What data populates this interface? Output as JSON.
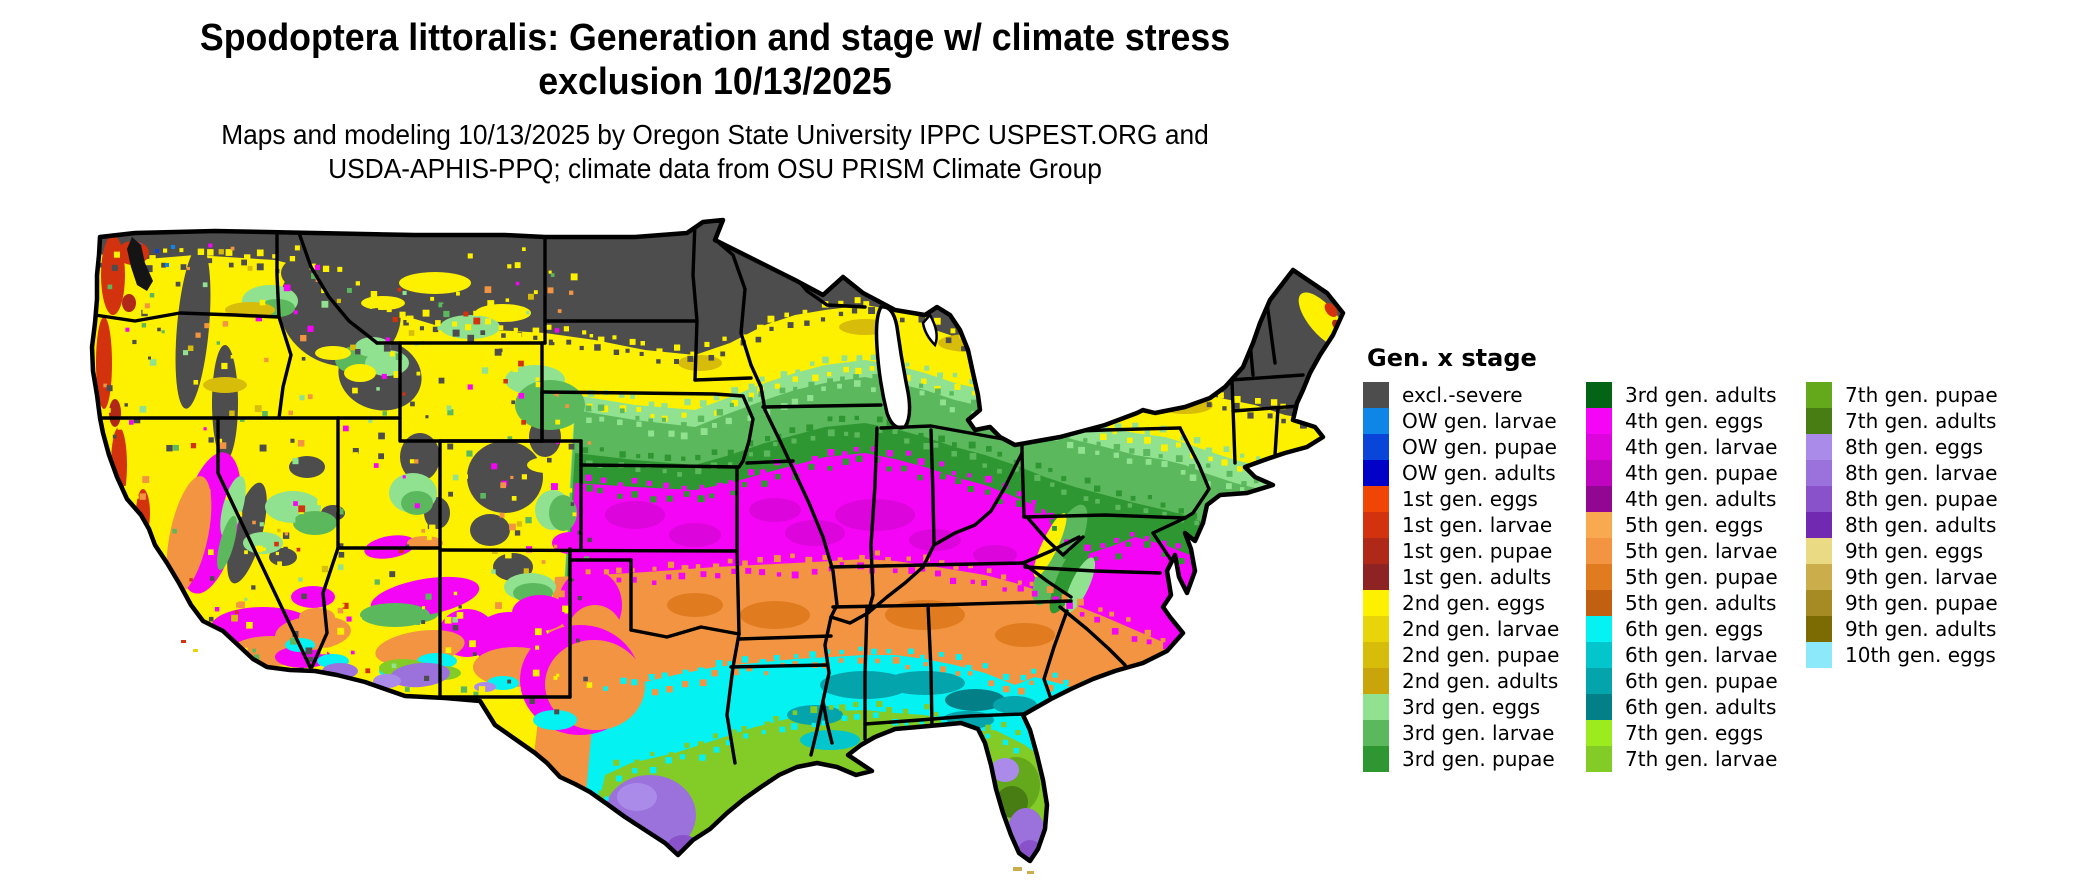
{
  "page": {
    "background_color": "#FFFFFF"
  },
  "header": {
    "title_line1": "Spodoptera littoralis: Generation and stage w/ climate stress",
    "title_line2": "exclusion 10/13/2025",
    "subtitle_line1": "Maps and modeling 10/13/2025 by Oregon State University IPPC USPEST.ORG and",
    "subtitle_line2": "USDA-APHIS-PPQ; climate data from OSU PRISM Climate Group"
  },
  "map": {
    "region": "Continental United States",
    "date_shown": "10/13/2025",
    "border_color": "#000000",
    "excluded_color": "#4D4D4D",
    "north_to_south_band_sequence": [
      "excl.-severe",
      "2nd gen. (eggs/larvae/pupae/adults)",
      "3rd gen. (eggs/larvae/pupae/adults)",
      "4th gen. (eggs/larvae/pupae/adults)",
      "5th gen. (eggs/larvae/pupae/adults)",
      "6th gen. (eggs/larvae/pupae/adults)",
      "7th gen. (eggs/larvae/pupae/adults)",
      "8th gen. (eggs/larvae/pupae)"
    ]
  },
  "legend": {
    "title": "Gen. x stage",
    "columns": [
      [
        {
          "label": "excl.-severe",
          "color": "#4D4D4D"
        },
        {
          "label": "OW gen. larvae",
          "color": "#0D86E8"
        },
        {
          "label": "OW gen. pupae",
          "color": "#0A45D9"
        },
        {
          "label": "OW gen. adults",
          "color": "#0101C8"
        },
        {
          "label": "1st gen. eggs",
          "color": "#F04505"
        },
        {
          "label": "1st gen. larvae",
          "color": "#D2320E"
        },
        {
          "label": "1st gen. pupae",
          "color": "#B02818"
        },
        {
          "label": "1st gen. adults",
          "color": "#8E2323"
        },
        {
          "label": "2nd gen. eggs",
          "color": "#FDF100"
        },
        {
          "label": "2nd gen. larvae",
          "color": "#E8D409"
        },
        {
          "label": "2nd gen. pupae",
          "color": "#D8BC0A"
        },
        {
          "label": "2nd gen. adults",
          "color": "#C9A40B"
        },
        {
          "label": "3rd gen. eggs",
          "color": "#90E290"
        },
        {
          "label": "3rd gen. larvae",
          "color": "#5CB85C"
        },
        {
          "label": "3rd gen. pupae",
          "color": "#2F9732"
        }
      ],
      [
        {
          "label": "3rd gen. adults",
          "color": "#026414"
        },
        {
          "label": "4th gen. eggs",
          "color": "#F505F5"
        },
        {
          "label": "4th gen. larvae",
          "color": "#DC06DC"
        },
        {
          "label": "4th gen. pupae",
          "color": "#C005C0"
        },
        {
          "label": "4th gen. adults",
          "color": "#910791"
        },
        {
          "label": "5th gen. eggs",
          "color": "#F9A94F"
        },
        {
          "label": "5th gen. larvae",
          "color": "#F29441"
        },
        {
          "label": "5th gen. pupae",
          "color": "#E07C1F"
        },
        {
          "label": "5th gen. adults",
          "color": "#C26012"
        },
        {
          "label": "6th gen. eggs",
          "color": "#05F2F2"
        },
        {
          "label": "6th gen. larvae",
          "color": "#02C6CC"
        },
        {
          "label": "6th gen. pupae",
          "color": "#04A4AC"
        },
        {
          "label": "6th gen. adults",
          "color": "#038087"
        },
        {
          "label": "7th gen. eggs",
          "color": "#9BEB1F"
        },
        {
          "label": "7th gen. larvae",
          "color": "#83CB26"
        }
      ],
      [
        {
          "label": "7th gen. pupae",
          "color": "#64A81C"
        },
        {
          "label": "7th gen. adults",
          "color": "#477D12"
        },
        {
          "label": "8th gen. eggs",
          "color": "#AB8BEA"
        },
        {
          "label": "8th gen. larvae",
          "color": "#9B72DC"
        },
        {
          "label": "8th gen. pupae",
          "color": "#8A52CA"
        },
        {
          "label": "8th gen. adults",
          "color": "#7229B2"
        },
        {
          "label": "9th gen. eggs",
          "color": "#E9DA83"
        },
        {
          "label": "9th gen. larvae",
          "color": "#CBAD4C"
        },
        {
          "label": "9th gen. pupae",
          "color": "#A68B24"
        },
        {
          "label": "9th gen. adults",
          "color": "#7C6A02"
        },
        {
          "label": "10th gen. eggs",
          "color": "#8BE9F9"
        }
      ]
    ]
  }
}
